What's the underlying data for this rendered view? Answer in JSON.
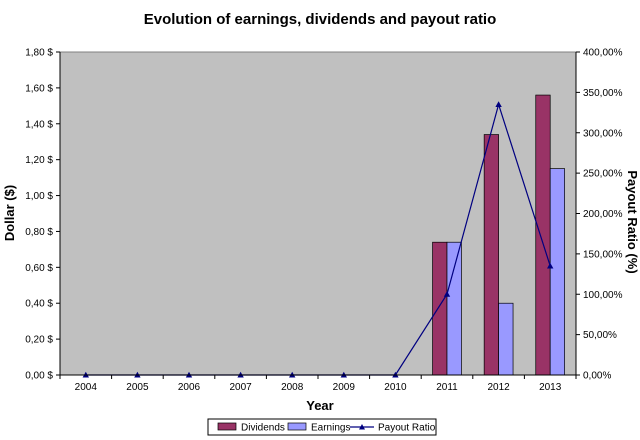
{
  "chart_data": {
    "type": "bar",
    "title": "Evolution of earnings, dividends and payout ratio",
    "xlabel": "Year",
    "ylabel": "Dollar ($)",
    "y2label": "Payout Ratio (%)",
    "categories": [
      "2004",
      "2005",
      "2006",
      "2007",
      "2008",
      "2009",
      "2010",
      "2011",
      "2012",
      "2013"
    ],
    "ylim": [
      0,
      1.8
    ],
    "y2lim": [
      0,
      400
    ],
    "yticks": [
      "0,00 $",
      "0,20 $",
      "0,40 $",
      "0,60 $",
      "0,80 $",
      "1,00 $",
      "1,20 $",
      "1,40 $",
      "1,60 $",
      "1,80 $"
    ],
    "y2ticks": [
      "0,00%",
      "50,00%",
      "100,00%",
      "150,00%",
      "200,00%",
      "250,00%",
      "300,00%",
      "350,00%",
      "400,00%"
    ],
    "series": [
      {
        "name": "Dividends",
        "type": "bar",
        "axis": "left",
        "color": "#993366",
        "values": [
          0,
          0,
          0,
          0,
          0,
          0,
          0,
          0.74,
          1.34,
          1.56
        ]
      },
      {
        "name": "Earnings",
        "type": "bar",
        "axis": "left",
        "color": "#9999ff",
        "values": [
          0,
          0,
          0,
          0,
          0,
          0,
          0,
          0.74,
          0.4,
          1.15
        ]
      },
      {
        "name": "Payout Ratio",
        "type": "line",
        "axis": "right",
        "color": "#000080",
        "values": [
          0,
          0,
          0,
          0,
          0,
          0,
          0,
          100,
          335,
          135
        ]
      }
    ],
    "plot_background": "#c0c0c0",
    "grid": false,
    "legend_position": "bottom"
  }
}
